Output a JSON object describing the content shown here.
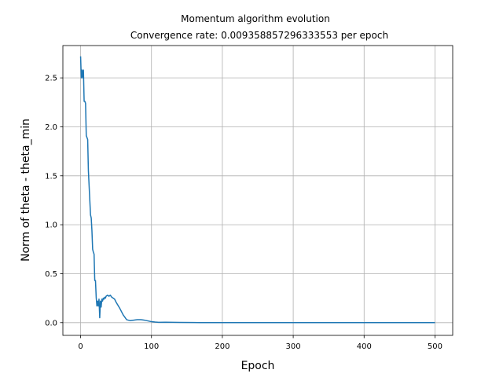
{
  "chart_data": {
    "type": "line",
    "title": "Momentum algorithm evolution",
    "subtitle": "Convergence rate: 0.009358857296333553 per epoch",
    "xlabel": "Epoch",
    "ylabel": "Norm of  theta - theta_min",
    "xlim": [
      -25,
      525
    ],
    "ylim": [
      -0.13,
      2.83
    ],
    "xticks": [
      0,
      100,
      200,
      300,
      400,
      500
    ],
    "xtick_labels": [
      "0",
      "100",
      "200",
      "300",
      "400",
      "500"
    ],
    "yticks": [
      0.0,
      0.5,
      1.0,
      1.5,
      2.0,
      2.5
    ],
    "ytick_labels": [
      "0.0",
      "0.5",
      "1.0",
      "1.5",
      "2.0",
      "2.5"
    ],
    "grid": true,
    "series": [
      {
        "color": "#1f77b4",
        "x": [
          0,
          1,
          2,
          3,
          4,
          5,
          6,
          7,
          8,
          10,
          11,
          12,
          14,
          15,
          16,
          17,
          18,
          19,
          20,
          21,
          22,
          23,
          24,
          25,
          26,
          27,
          28,
          29,
          30,
          31,
          32,
          33,
          34,
          35,
          36,
          38,
          40,
          42,
          44,
          46,
          48,
          50,
          55,
          60,
          65,
          70,
          75,
          80,
          85,
          90,
          95,
          100,
          105,
          110,
          120,
          140,
          160,
          200,
          300,
          400,
          500
        ],
        "y": [
          2.72,
          2.5,
          2.58,
          2.5,
          2.58,
          2.26,
          2.26,
          2.24,
          1.91,
          1.87,
          1.55,
          1.4,
          1.1,
          1.07,
          0.94,
          0.75,
          0.72,
          0.7,
          0.43,
          0.43,
          0.26,
          0.17,
          0.22,
          0.17,
          0.24,
          0.05,
          0.22,
          0.16,
          0.24,
          0.22,
          0.25,
          0.24,
          0.26,
          0.25,
          0.27,
          0.28,
          0.27,
          0.28,
          0.26,
          0.25,
          0.24,
          0.21,
          0.15,
          0.08,
          0.03,
          0.02,
          0.025,
          0.03,
          0.03,
          0.025,
          0.018,
          0.01,
          0.006,
          0.003,
          0.004,
          0.002,
          0.001,
          0.0,
          0.0,
          0.0,
          0.0
        ]
      }
    ]
  }
}
